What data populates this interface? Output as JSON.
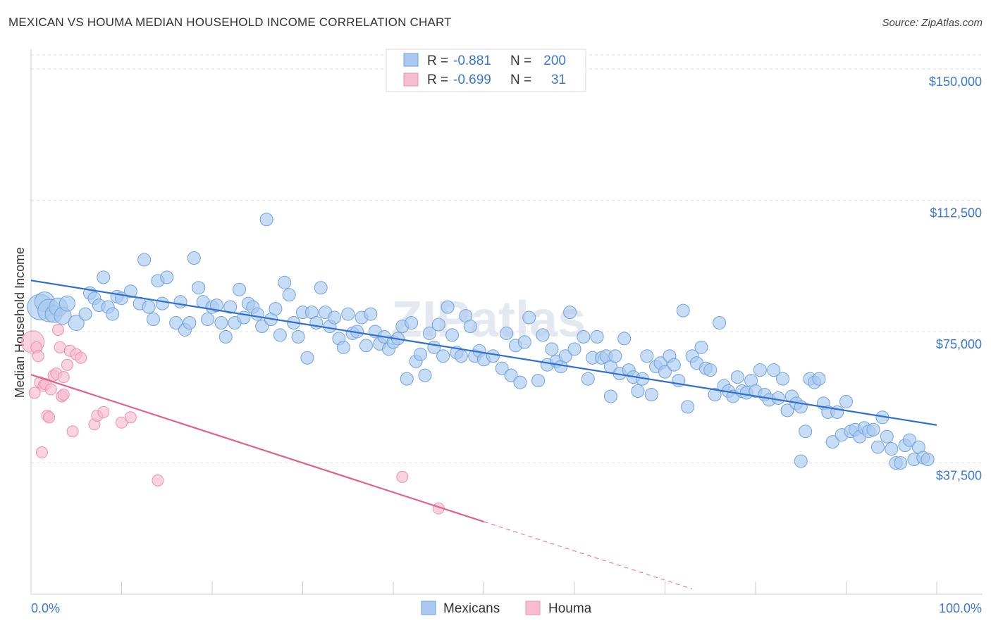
{
  "title": "MEXICAN VS HOUMA MEDIAN HOUSEHOLD INCOME CORRELATION CHART",
  "source": "Source: ZipAtlas.com",
  "watermark": "ZIPatlas",
  "stats": [
    {
      "r_label": "R =",
      "r_value": "-0.881",
      "n_label": "N =",
      "n_value": "200"
    },
    {
      "r_label": "R =",
      "r_value": "-0.699",
      "n_label": "N =",
      "n_value": "31"
    }
  ],
  "legend": [
    "Mexicans",
    "Houma"
  ],
  "colors": {
    "mexicans_fill": "#a9c9f0",
    "mexicans_stroke": "#6fa2e0",
    "mexicans_line": "#2f6fd0",
    "houma_fill": "#f7bcd0",
    "houma_stroke": "#ec8fb0",
    "houma_line": "#e0608f",
    "accent_text": "#3a78d0"
  },
  "chart_data": {
    "type": "scatter",
    "title": "MEXICAN VS HOUMA MEDIAN HOUSEHOLD INCOME CORRELATION CHART",
    "xlabel": "",
    "ylabel": "Median Household Income",
    "x_tick_labels": [
      "0.0%",
      "100.0%"
    ],
    "y_tick_labels": [
      "$37,500",
      "$75,000",
      "$112,500",
      "$150,000"
    ],
    "yticks": [
      37500,
      75000,
      112500,
      150000
    ],
    "xlim": [
      0,
      100
    ],
    "ylim": [
      0,
      154000
    ],
    "grid": true,
    "legend_position": "bottom-center",
    "series": [
      {
        "name": "Mexicans",
        "trend": {
          "x": [
            0,
            100
          ],
          "y": [
            89600,
            48300
          ]
        },
        "points": [
          [
            1,
            82000
          ],
          [
            1.5,
            83500
          ],
          [
            2,
            81000
          ],
          [
            2.5,
            80000
          ],
          [
            3,
            82000
          ],
          [
            3.5,
            79500
          ],
          [
            4,
            83000
          ],
          [
            5,
            77500
          ],
          [
            6,
            80000
          ],
          [
            6.5,
            86000
          ],
          [
            7,
            84500
          ],
          [
            7.5,
            82500
          ],
          [
            8,
            90500
          ],
          [
            8.5,
            82000
          ],
          [
            9,
            80000
          ],
          [
            9.5,
            85000
          ],
          [
            10,
            84500
          ],
          [
            11,
            86500
          ],
          [
            12,
            83000
          ],
          [
            12.5,
            95500
          ],
          [
            13,
            82000
          ],
          [
            13.5,
            78500
          ],
          [
            14,
            89500
          ],
          [
            14.5,
            83000
          ],
          [
            15,
            90500
          ],
          [
            16,
            77500
          ],
          [
            16.5,
            83500
          ],
          [
            17,
            75500
          ],
          [
            17.5,
            77500
          ],
          [
            18,
            96000
          ],
          [
            18.5,
            87500
          ],
          [
            19,
            83500
          ],
          [
            19.5,
            78500
          ],
          [
            20,
            82000
          ],
          [
            20.5,
            82500
          ],
          [
            21,
            77500
          ],
          [
            21.5,
            73500
          ],
          [
            22,
            82000
          ],
          [
            22.5,
            77500
          ],
          [
            23,
            87000
          ],
          [
            23.5,
            79000
          ],
          [
            24,
            83000
          ],
          [
            24.5,
            82000
          ],
          [
            25,
            80000
          ],
          [
            25.5,
            76500
          ],
          [
            26,
            107000
          ],
          [
            26.5,
            78500
          ],
          [
            27,
            81500
          ],
          [
            27.5,
            74000
          ],
          [
            28,
            89000
          ],
          [
            28.5,
            85500
          ],
          [
            29,
            77500
          ],
          [
            29.5,
            73500
          ],
          [
            30,
            80500
          ],
          [
            30.5,
            67500
          ],
          [
            31,
            80500
          ],
          [
            31.5,
            77500
          ],
          [
            32,
            87500
          ],
          [
            32.5,
            80500
          ],
          [
            33,
            76500
          ],
          [
            33.5,
            79000
          ],
          [
            34,
            73000
          ],
          [
            34.5,
            70500
          ],
          [
            35,
            80000
          ],
          [
            35.5,
            74500
          ],
          [
            36,
            75000
          ],
          [
            36.5,
            79000
          ],
          [
            37,
            71000
          ],
          [
            37.5,
            80000
          ],
          [
            38,
            75000
          ],
          [
            38.5,
            71500
          ],
          [
            39,
            73500
          ],
          [
            39.5,
            70000
          ],
          [
            40,
            72000
          ],
          [
            40.5,
            73000
          ],
          [
            41,
            76500
          ],
          [
            41.5,
            61500
          ],
          [
            42,
            77500
          ],
          [
            42.5,
            66500
          ],
          [
            43,
            68500
          ],
          [
            43.5,
            62500
          ],
          [
            44,
            74500
          ],
          [
            44.5,
            70500
          ],
          [
            45,
            77000
          ],
          [
            45.5,
            68000
          ],
          [
            46,
            82000
          ],
          [
            46.5,
            74000
          ],
          [
            47,
            69000
          ],
          [
            47.5,
            68000
          ],
          [
            48,
            79500
          ],
          [
            48.5,
            76500
          ],
          [
            49,
            68000
          ],
          [
            49.5,
            69500
          ],
          [
            50,
            67000
          ],
          [
            51,
            68000
          ],
          [
            52,
            64500
          ],
          [
            52.5,
            74500
          ],
          [
            53,
            62500
          ],
          [
            53.5,
            71000
          ],
          [
            54,
            60500
          ],
          [
            54.5,
            72000
          ],
          [
            55,
            79000
          ],
          [
            56,
            61000
          ],
          [
            56.5,
            74000
          ],
          [
            57,
            65500
          ],
          [
            57.5,
            70000
          ],
          [
            58,
            66500
          ],
          [
            58.5,
            65000
          ],
          [
            59,
            68000
          ],
          [
            59.5,
            80500
          ],
          [
            60,
            70000
          ],
          [
            61,
            73500
          ],
          [
            61.5,
            61500
          ],
          [
            62,
            67500
          ],
          [
            62.5,
            73500
          ],
          [
            63,
            67500
          ],
          [
            63.5,
            68000
          ],
          [
            64,
            65000
          ],
          [
            64.5,
            68000
          ],
          [
            65,
            63000
          ],
          [
            65.5,
            73000
          ],
          [
            66,
            64000
          ],
          [
            66.5,
            62000
          ],
          [
            67,
            58000
          ],
          [
            67.5,
            61500
          ],
          [
            68,
            68000
          ],
          [
            68.5,
            57000
          ],
          [
            69,
            65000
          ],
          [
            69.5,
            66000
          ],
          [
            70,
            63500
          ],
          [
            70.5,
            68000
          ],
          [
            71,
            65500
          ],
          [
            71.5,
            61000
          ],
          [
            72,
            81000
          ],
          [
            72.5,
            53500
          ],
          [
            73,
            68000
          ],
          [
            73.5,
            66000
          ],
          [
            74,
            70500
          ],
          [
            74.5,
            64500
          ],
          [
            75,
            64000
          ],
          [
            75.5,
            57000
          ],
          [
            76,
            77500
          ],
          [
            76.5,
            59500
          ],
          [
            77,
            58000
          ],
          [
            77.5,
            56500
          ],
          [
            78,
            62000
          ],
          [
            78.5,
            58000
          ],
          [
            79,
            57500
          ],
          [
            79.5,
            61000
          ],
          [
            80,
            58000
          ],
          [
            80.5,
            64000
          ],
          [
            81,
            57000
          ],
          [
            81.5,
            55500
          ],
          [
            82,
            64000
          ],
          [
            82.5,
            56000
          ],
          [
            83,
            61500
          ],
          [
            83.5,
            52500
          ],
          [
            84,
            56500
          ],
          [
            84.5,
            54500
          ],
          [
            85,
            53500
          ],
          [
            85.5,
            46500
          ],
          [
            86,
            61500
          ],
          [
            86.5,
            60500
          ],
          [
            87,
            61500
          ],
          [
            87.5,
            54500
          ],
          [
            88,
            52000
          ],
          [
            88.5,
            43500
          ],
          [
            89,
            52000
          ],
          [
            89.5,
            45500
          ],
          [
            90,
            55000
          ],
          [
            90.5,
            46500
          ],
          [
            91,
            47000
          ],
          [
            91.5,
            45000
          ],
          [
            92,
            47500
          ],
          [
            92.5,
            46500
          ],
          [
            93,
            47000
          ],
          [
            93.5,
            42000
          ],
          [
            94,
            50500
          ],
          [
            94.5,
            45000
          ],
          [
            95,
            41500
          ],
          [
            95.5,
            37500
          ],
          [
            96,
            37500
          ],
          [
            96.5,
            42500
          ],
          [
            97,
            44000
          ],
          [
            97.5,
            38500
          ],
          [
            98,
            42000
          ],
          [
            98.5,
            39000
          ],
          [
            99,
            38500
          ],
          [
            85,
            38000
          ],
          [
            64,
            56500
          ]
        ]
      },
      {
        "name": "Houma",
        "trend": {
          "x": [
            0,
            50
          ],
          "y": [
            62700,
            20700
          ]
        },
        "trend_dashed": {
          "x": [
            50,
            73
          ],
          "y": [
            20700,
            1500
          ]
        },
        "points": [
          [
            0.2,
            72000
          ],
          [
            0.4,
            57500
          ],
          [
            0.6,
            70500
          ],
          [
            0.8,
            68000
          ],
          [
            1,
            60500
          ],
          [
            1.2,
            40500
          ],
          [
            1.4,
            59500
          ],
          [
            1.6,
            60000
          ],
          [
            1.8,
            51000
          ],
          [
            2,
            50500
          ],
          [
            2.2,
            58500
          ],
          [
            2.5,
            62500
          ],
          [
            2.8,
            63000
          ],
          [
            3,
            75500
          ],
          [
            3.2,
            70500
          ],
          [
            3.4,
            56500
          ],
          [
            3.6,
            57000
          ],
          [
            4,
            65500
          ],
          [
            4.3,
            69500
          ],
          [
            4.6,
            46500
          ],
          [
            5,
            68500
          ],
          [
            5.5,
            67500
          ],
          [
            7,
            48500
          ],
          [
            7.3,
            51000
          ],
          [
            8,
            52000
          ],
          [
            10,
            49000
          ],
          [
            11,
            50500
          ],
          [
            14,
            32500
          ],
          [
            41,
            33500
          ],
          [
            45,
            24500
          ],
          [
            3.6,
            62000
          ]
        ]
      }
    ]
  }
}
